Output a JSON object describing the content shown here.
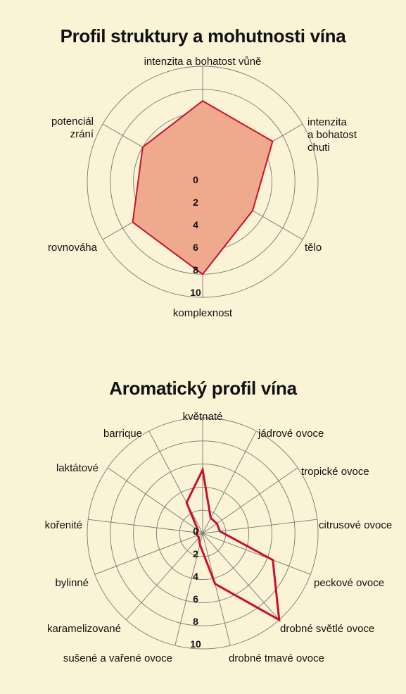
{
  "colors": {
    "background": "#fbf3d6",
    "grid": "#777777",
    "series_line": "#c8102e",
    "series_fill": "#efa98c"
  },
  "chart_data": [
    {
      "type": "radar",
      "title": "Profil struktury a mohutnosti vína",
      "axes": [
        "intenzita a bohatost vůně",
        "intenzita a bohatost chuti",
        "tělo",
        "komplexnost",
        "rovnováha",
        "potenciál zrání"
      ],
      "tick_labels": [
        "0",
        "2",
        "4",
        "6",
        "8",
        "10"
      ],
      "rlim": [
        0,
        10
      ],
      "filled": true,
      "series": [
        {
          "values": [
            7,
            7,
            5,
            8,
            7,
            6
          ]
        }
      ]
    },
    {
      "type": "radar",
      "title": "Aromatický profil vína",
      "axes": [
        "květnaté",
        "jádrové ovoce",
        "tropické ovoce",
        "citrusové ovoce",
        "peckové ovoce",
        "drobné světlé ovoce",
        "drobné tmavé ovoce",
        "sušené a vařené ovoce",
        "karamelizované",
        "bylinné",
        "kořenité",
        "laktátové",
        "barrique"
      ],
      "tick_labels": [
        "0",
        "2",
        "4",
        "6",
        "8",
        "10"
      ],
      "rlim": [
        0,
        10
      ],
      "filled": false,
      "series": [
        {
          "values": [
            5.5,
            1.5,
            1.5,
            1.5,
            6.5,
            10,
            4.5,
            1,
            0.5,
            0.5,
            0.5,
            0.5,
            3
          ]
        }
      ]
    }
  ]
}
